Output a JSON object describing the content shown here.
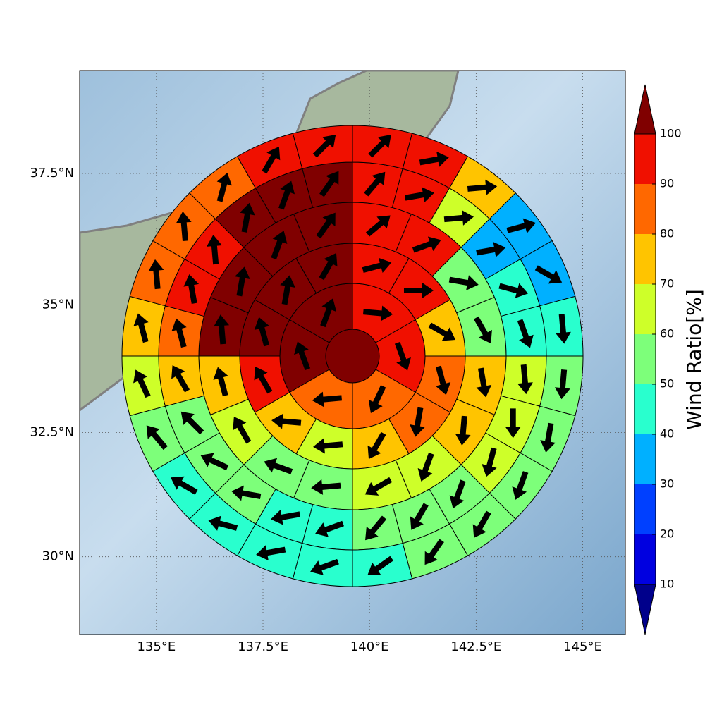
{
  "chart_data": {
    "type": "polar_sector",
    "xlim": [
      133.2,
      146.0
    ],
    "ylim": [
      28.4,
      39.4
    ],
    "xticks": [
      {
        "value": 135,
        "label": "135°E"
      },
      {
        "value": 137.5,
        "label": "137.5°E"
      },
      {
        "value": 140,
        "label": "140°E"
      },
      {
        "value": 142.5,
        "label": "142.5°E"
      },
      {
        "value": 145,
        "label": "145°E"
      }
    ],
    "yticks": [
      {
        "value": 30,
        "label": "30°N"
      },
      {
        "value": 32.5,
        "label": "32.5°N"
      },
      {
        "value": 35,
        "label": "35°N"
      },
      {
        "value": 37.5,
        "label": "37.5°N"
      }
    ],
    "grid": true,
    "center_value": 100,
    "rings": [
      {
        "values": [
          95,
          95,
          85,
          85,
          100,
          100
        ],
        "directions": [
          95,
          160,
          205,
          265,
          340,
          20
        ]
      },
      {
        "values": [
          95,
          95,
          75,
          85,
          85,
          75,
          65,
          75,
          95,
          100,
          100,
          100
        ],
        "directions": [
          75,
          90,
          120,
          165,
          190,
          210,
          265,
          275,
          330,
          345,
          10,
          30
        ]
      },
      {
        "values": [
          95,
          95,
          55,
          55,
          75,
          75,
          65,
          65,
          55,
          55,
          65,
          75,
          100,
          100,
          100,
          100
        ],
        "directions": [
          50,
          70,
          100,
          150,
          170,
          185,
          200,
          240,
          265,
          290,
          330,
          345,
          355,
          10,
          20,
          35
        ]
      },
      {
        "values": [
          95,
          95,
          65,
          35,
          45,
          45,
          65,
          65,
          65,
          55,
          55,
          55,
          45,
          45,
          55,
          55,
          55,
          75,
          85,
          95,
          95,
          100,
          100,
          100
        ],
        "directions": [
          40,
          80,
          85,
          80,
          105,
          160,
          175,
          180,
          195,
          200,
          210,
          220,
          250,
          260,
          280,
          295,
          315,
          330,
          345,
          350,
          355,
          10,
          20,
          35
        ]
      },
      {
        "values": [
          95,
          95,
          75,
          35,
          35,
          45,
          55,
          55,
          55,
          55,
          55,
          45,
          45,
          45,
          45,
          45,
          55,
          65,
          75,
          85,
          85,
          85,
          95,
          95
        ],
        "directions": [
          45,
          80,
          85,
          75,
          120,
          175,
          185,
          190,
          200,
          210,
          215,
          235,
          250,
          260,
          285,
          300,
          320,
          335,
          345,
          355,
          355,
          15,
          30,
          45
        ]
      }
    ],
    "colorbar": {
      "label": "Wind Ratio[%]",
      "ticks": [
        10,
        20,
        30,
        40,
        50,
        60,
        70,
        80,
        90,
        100
      ],
      "colors": [
        "#00008b",
        "#0000e0",
        "#0040ff",
        "#00b0ff",
        "#29ffce",
        "#7dff7a",
        "#ceff29",
        "#ffc400",
        "#ff6800",
        "#f01000",
        "#800000"
      ]
    }
  }
}
